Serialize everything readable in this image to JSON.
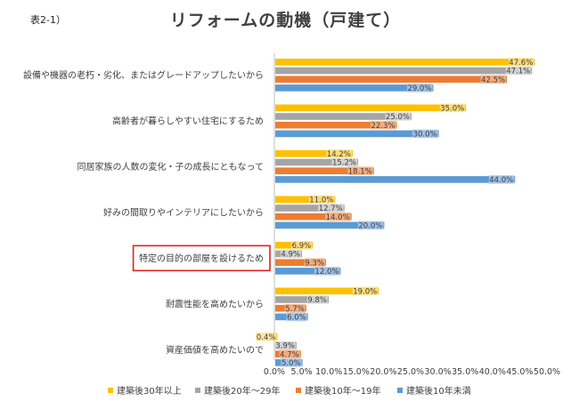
{
  "table_id": "表2-1）",
  "chart_data": {
    "type": "bar",
    "orientation": "horizontal",
    "title": "リフォームの動機（戸建て）",
    "categories": [
      "設備や機器の老朽・劣化、またはグレードアップしたいから",
      "高齢者が暮らしやすい住宅にするため",
      "同居家族の人数の変化・子の成長にともなって",
      "好みの間取りやインテリアにしたいから",
      "特定の目的の部屋を設けるため",
      "耐震性能を高めたいから",
      "資産価値を高めたいので"
    ],
    "highlighted_category_index": 4,
    "highlight_color": "#e02020",
    "series": [
      {
        "name": "建築後30年以上",
        "color": "#ffc000",
        "values": [
          47.6,
          35.0,
          14.2,
          11.0,
          6.9,
          19.0,
          0.4
        ]
      },
      {
        "name": "建築後20年〜29年",
        "color": "#a5a5a5",
        "values": [
          47.1,
          25.0,
          15.2,
          12.7,
          4.9,
          9.8,
          3.9
        ]
      },
      {
        "name": "建築後10年〜19年",
        "color": "#ed7d31",
        "values": [
          42.5,
          22.3,
          18.1,
          14.0,
          9.3,
          5.7,
          4.7
        ]
      },
      {
        "name": "建築後10年未満",
        "color": "#5b9bd5",
        "values": [
          29.0,
          30.0,
          44.0,
          20.0,
          12.0,
          6.0,
          5.0
        ]
      }
    ],
    "data_labels": [
      [
        "47.6%",
        "35.0%",
        "14.2%",
        "11.0%",
        "6.9%",
        "19.0%",
        "0.4%"
      ],
      [
        "47.1%",
        "25.0%",
        "15.2%",
        "12.7%",
        "4.9%",
        "9.8%",
        "3.9%"
      ],
      [
        "42.5%",
        "22.3%",
        "18.1%",
        "14.0%",
        "9.3%",
        "5.7%",
        "4.7%"
      ],
      [
        "29.0%",
        "30.0%",
        "44.0%",
        "20.0%",
        "12.0%",
        "6.0%",
        "5.0%"
      ]
    ],
    "x_ticks": [
      "0.0%",
      "5.0%",
      "10.0%",
      "15.0%",
      "20.0%",
      "25.0%",
      "30.0%",
      "35.0%",
      "40.0%",
      "45.0%",
      "50.0%"
    ],
    "xlim": [
      0,
      50
    ],
    "grid": false,
    "legend_position": "bottom"
  }
}
